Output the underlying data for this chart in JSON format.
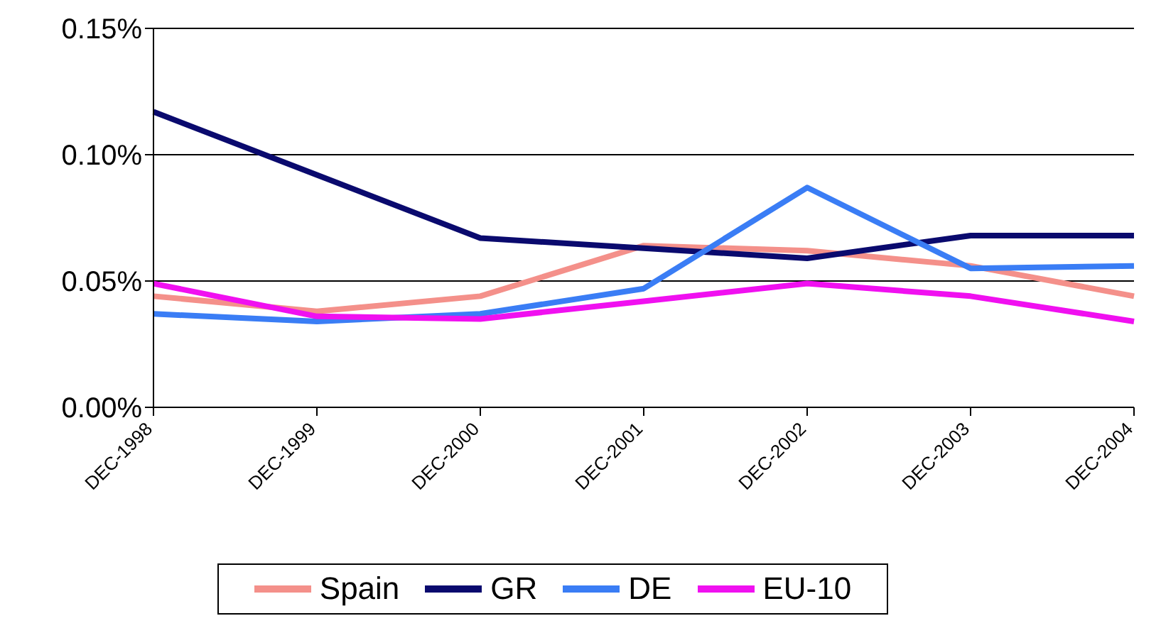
{
  "chart_data": {
    "type": "line",
    "categories": [
      "DEC-1998",
      "DEC-1999",
      "DEC-2000",
      "DEC-2001",
      "DEC-2002",
      "DEC-2003",
      "DEC-2004"
    ],
    "series": [
      {
        "name": "Spain",
        "color": "#f4908a",
        "values": [
          0.044,
          0.038,
          0.044,
          0.064,
          0.062,
          0.056,
          0.044
        ]
      },
      {
        "name": "GR",
        "color": "#0a0a6e",
        "values": [
          0.117,
          0.092,
          0.067,
          0.063,
          0.059,
          0.068,
          0.068
        ]
      },
      {
        "name": "DE",
        "color": "#3a7df5",
        "values": [
          0.037,
          0.034,
          0.037,
          0.047,
          0.087,
          0.055,
          0.056
        ]
      },
      {
        "name": "EU-10",
        "color": "#f010f0",
        "values": [
          0.049,
          0.036,
          0.035,
          0.042,
          0.049,
          0.044,
          0.034
        ]
      }
    ],
    "ylim": [
      0,
      0.15
    ],
    "yticks": [
      {
        "value": 0,
        "label": "0.00%"
      },
      {
        "value": 0.05,
        "label": "0.05%"
      },
      {
        "value": 0.1,
        "label": "0.10%"
      },
      {
        "value": 0.15,
        "label": "0.15%"
      }
    ],
    "grid": "y",
    "legend": "bottom",
    "marker": "none",
    "line_style": "solid"
  }
}
